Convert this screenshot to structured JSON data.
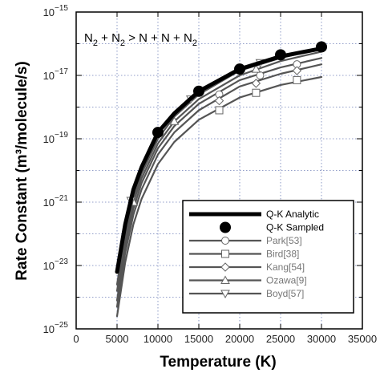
{
  "chart_data": {
    "type": "line",
    "title": "",
    "annotation": {
      "parts": [
        "N",
        "2",
        " + N",
        "2",
        " > N + N + N",
        "2"
      ],
      "subscript_flags": [
        false,
        true,
        false,
        true,
        false,
        true
      ]
    },
    "xlabel": "Temperature (K)",
    "ylabel": "Rate Constant (m³/molecule/s)",
    "xlim": [
      0,
      35000
    ],
    "ylim_log10": [
      -25,
      -15
    ],
    "yscale": "log",
    "grid": true,
    "legend_position": "bottom-right",
    "x_ticks": [
      0,
      5000,
      10000,
      15000,
      20000,
      25000,
      30000,
      35000
    ],
    "x_tick_labels": [
      "0",
      "5000",
      "10000",
      "15000",
      "20000",
      "25000",
      "30000",
      "35000"
    ],
    "y_tick_exponents": [
      -15,
      -17,
      -19,
      -21,
      -23,
      -25
    ],
    "y_tick_base": "10",
    "y_tick_exponent_labels": [
      "−15",
      "−17",
      "−19",
      "−21",
      "−23",
      "−25"
    ],
    "series": [
      {
        "name": "Q-K Analytic",
        "style": "line",
        "color": "#000000",
        "width": 5,
        "x": [
          5000,
          6000,
          7000,
          8000,
          10000,
          12000,
          15000,
          20000,
          25000,
          30000
        ],
        "log10_y": [
          -23.2,
          -21.7,
          -20.6,
          -19.9,
          -18.8,
          -18.2,
          -17.5,
          -16.8,
          -16.4,
          -16.15
        ]
      },
      {
        "name": "Q-K Sampled",
        "style": "marker",
        "marker": "filled-circle",
        "color": "#000000",
        "x": [
          10000,
          15000,
          20000,
          25000,
          30000
        ],
        "log10_y": [
          -18.8,
          -17.5,
          -16.8,
          -16.35,
          -16.1
        ]
      },
      {
        "name": "Park[53]",
        "style": "line-marker",
        "marker": "circle",
        "color": "#555555",
        "width": 2.2,
        "x": [
          5000,
          6000,
          7000,
          8000,
          10000,
          12000,
          15000,
          20000,
          25000,
          30000
        ],
        "log10_y": [
          -24.1,
          -22.4,
          -21.2,
          -20.4,
          -19.3,
          -18.6,
          -17.9,
          -17.15,
          -16.75,
          -16.45
        ],
        "marker_x": [
          17500,
          22500,
          27000
        ],
        "marker_log10_y": [
          -17.6,
          -17.0,
          -16.65
        ]
      },
      {
        "name": "Bird[38]",
        "style": "line-marker",
        "marker": "square",
        "color": "#555555",
        "width": 2.2,
        "x": [
          5000,
          6000,
          7000,
          8000,
          10000,
          12000,
          15000,
          20000,
          25000,
          30000
        ],
        "log10_y": [
          -24.6,
          -22.9,
          -21.7,
          -20.9,
          -19.8,
          -19.1,
          -18.4,
          -17.7,
          -17.3,
          -17.05
        ],
        "marker_x": [
          17500,
          22000,
          27000
        ],
        "marker_log10_y": [
          -18.1,
          -17.55,
          -17.15
        ]
      },
      {
        "name": "Kang[54]",
        "style": "line-marker",
        "marker": "diamond",
        "color": "#555555",
        "width": 2.2,
        "x": [
          5000,
          6000,
          7000,
          8000,
          10000,
          12000,
          15000,
          20000,
          25000,
          30000
        ],
        "log10_y": [
          -24.3,
          -22.6,
          -21.4,
          -20.6,
          -19.5,
          -18.8,
          -18.1,
          -17.35,
          -16.95,
          -16.65
        ],
        "marker_x": [
          17500,
          22000,
          27000
        ],
        "marker_log10_y": [
          -17.8,
          -17.25,
          -16.85
        ]
      },
      {
        "name": "Ozawa[9]",
        "style": "line-marker",
        "marker": "triangle-up",
        "color": "#555555",
        "width": 2.2,
        "x": [
          5000,
          6000,
          7000,
          8000,
          10000,
          12000,
          15000,
          20000,
          25000,
          30000
        ],
        "log10_y": [
          -23.8,
          -22.2,
          -21.0,
          -20.25,
          -19.15,
          -18.45,
          -17.75,
          -17.0,
          -16.55,
          -16.25
        ],
        "marker_x": [
          7000,
          12000,
          22000
        ],
        "marker_log10_y": [
          -21.0,
          -18.45,
          -16.8
        ]
      },
      {
        "name": "Boyd[57]",
        "style": "line-marker",
        "marker": "triangle-down",
        "color": "#555555",
        "width": 2.2,
        "x": [
          5000,
          6000,
          7000,
          8000,
          10000,
          12000,
          15000,
          20000,
          25000,
          30000
        ],
        "log10_y": [
          -23.6,
          -22.0,
          -20.85,
          -20.1,
          -19.0,
          -18.3,
          -17.6,
          -16.85,
          -16.45,
          -16.15
        ],
        "marker_x": [
          6700,
          14000,
          22500
        ],
        "marker_log10_y": [
          -20.95,
          -17.75,
          -16.6
        ]
      }
    ]
  }
}
